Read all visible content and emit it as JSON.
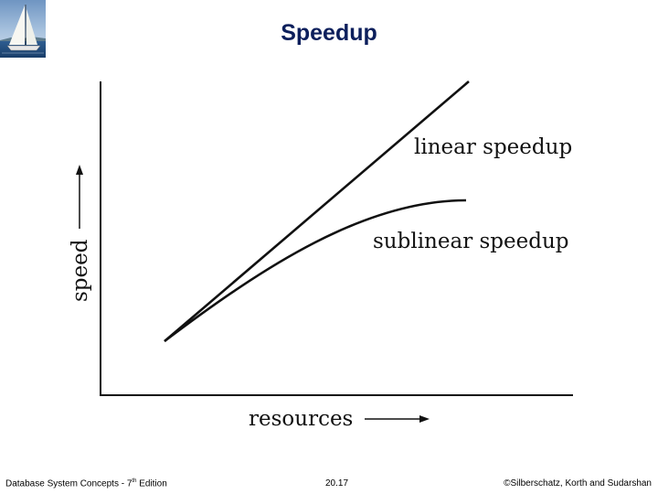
{
  "slide": {
    "title": "Speedup"
  },
  "logo": {
    "icon": "sailboat-icon"
  },
  "figure": {
    "x_axis_label": "resources",
    "y_axis_label": "speed",
    "curves": [
      {
        "label": "linear speedup"
      },
      {
        "label": "sublinear speedup"
      }
    ]
  },
  "footer": {
    "course_prefix": "Database System Concepts - 7",
    "course_sup": "th",
    "course_suffix": " Edition",
    "page_number": "20.17",
    "copyright": "©Silberschatz, Korth and Sudarshan"
  },
  "colors": {
    "title": "#0c1f5c",
    "line": "#111111"
  }
}
